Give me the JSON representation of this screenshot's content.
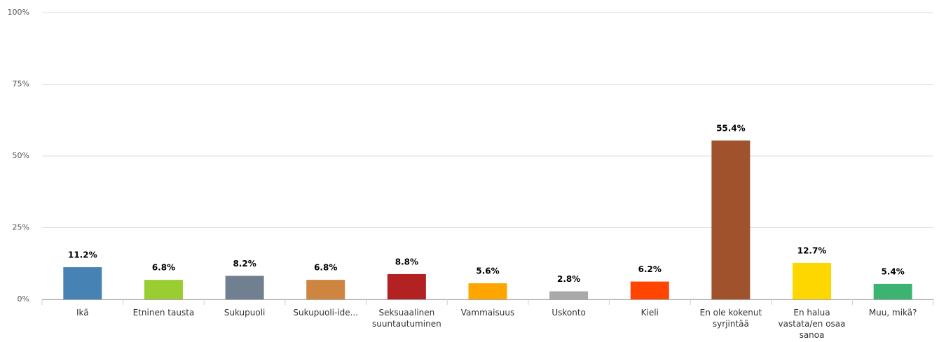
{
  "chart_data": {
    "type": "bar",
    "categories": [
      "Ikä",
      "Etninen tausta",
      "Sukupuoli",
      "Sukupuoli-ide...",
      "Seksuaalinen suuntautuminen",
      "Vammaisuus",
      "Uskonto",
      "Kieli",
      "En ole kokenut syrjintää",
      "En halua vastata/en osaa sanoa",
      "Muu, mikä?"
    ],
    "values": [
      11.2,
      6.8,
      8.2,
      6.8,
      8.8,
      5.6,
      2.8,
      6.2,
      55.4,
      12.7,
      5.4
    ],
    "value_labels": [
      "11.2%",
      "6.8%",
      "8.2%",
      "6.8%",
      "8.8%",
      "5.6%",
      "2.8%",
      "6.2%",
      "55.4%",
      "12.7%",
      "5.4%"
    ],
    "colors": [
      "#4682b4",
      "#9acd32",
      "#708090",
      "#cd853f",
      "#b22222",
      "#ffa500",
      "#a9a9a9",
      "#ff4500",
      "#a0522d",
      "#ffd700",
      "#3cb371"
    ],
    "ylim": [
      0,
      100
    ],
    "yticks": [
      {
        "value": 0,
        "label": "0%"
      },
      {
        "value": 25,
        "label": "25%"
      },
      {
        "value": 50,
        "label": "50%"
      },
      {
        "value": 75,
        "label": "75%"
      },
      {
        "value": 100,
        "label": "100%"
      }
    ],
    "grid": true
  }
}
